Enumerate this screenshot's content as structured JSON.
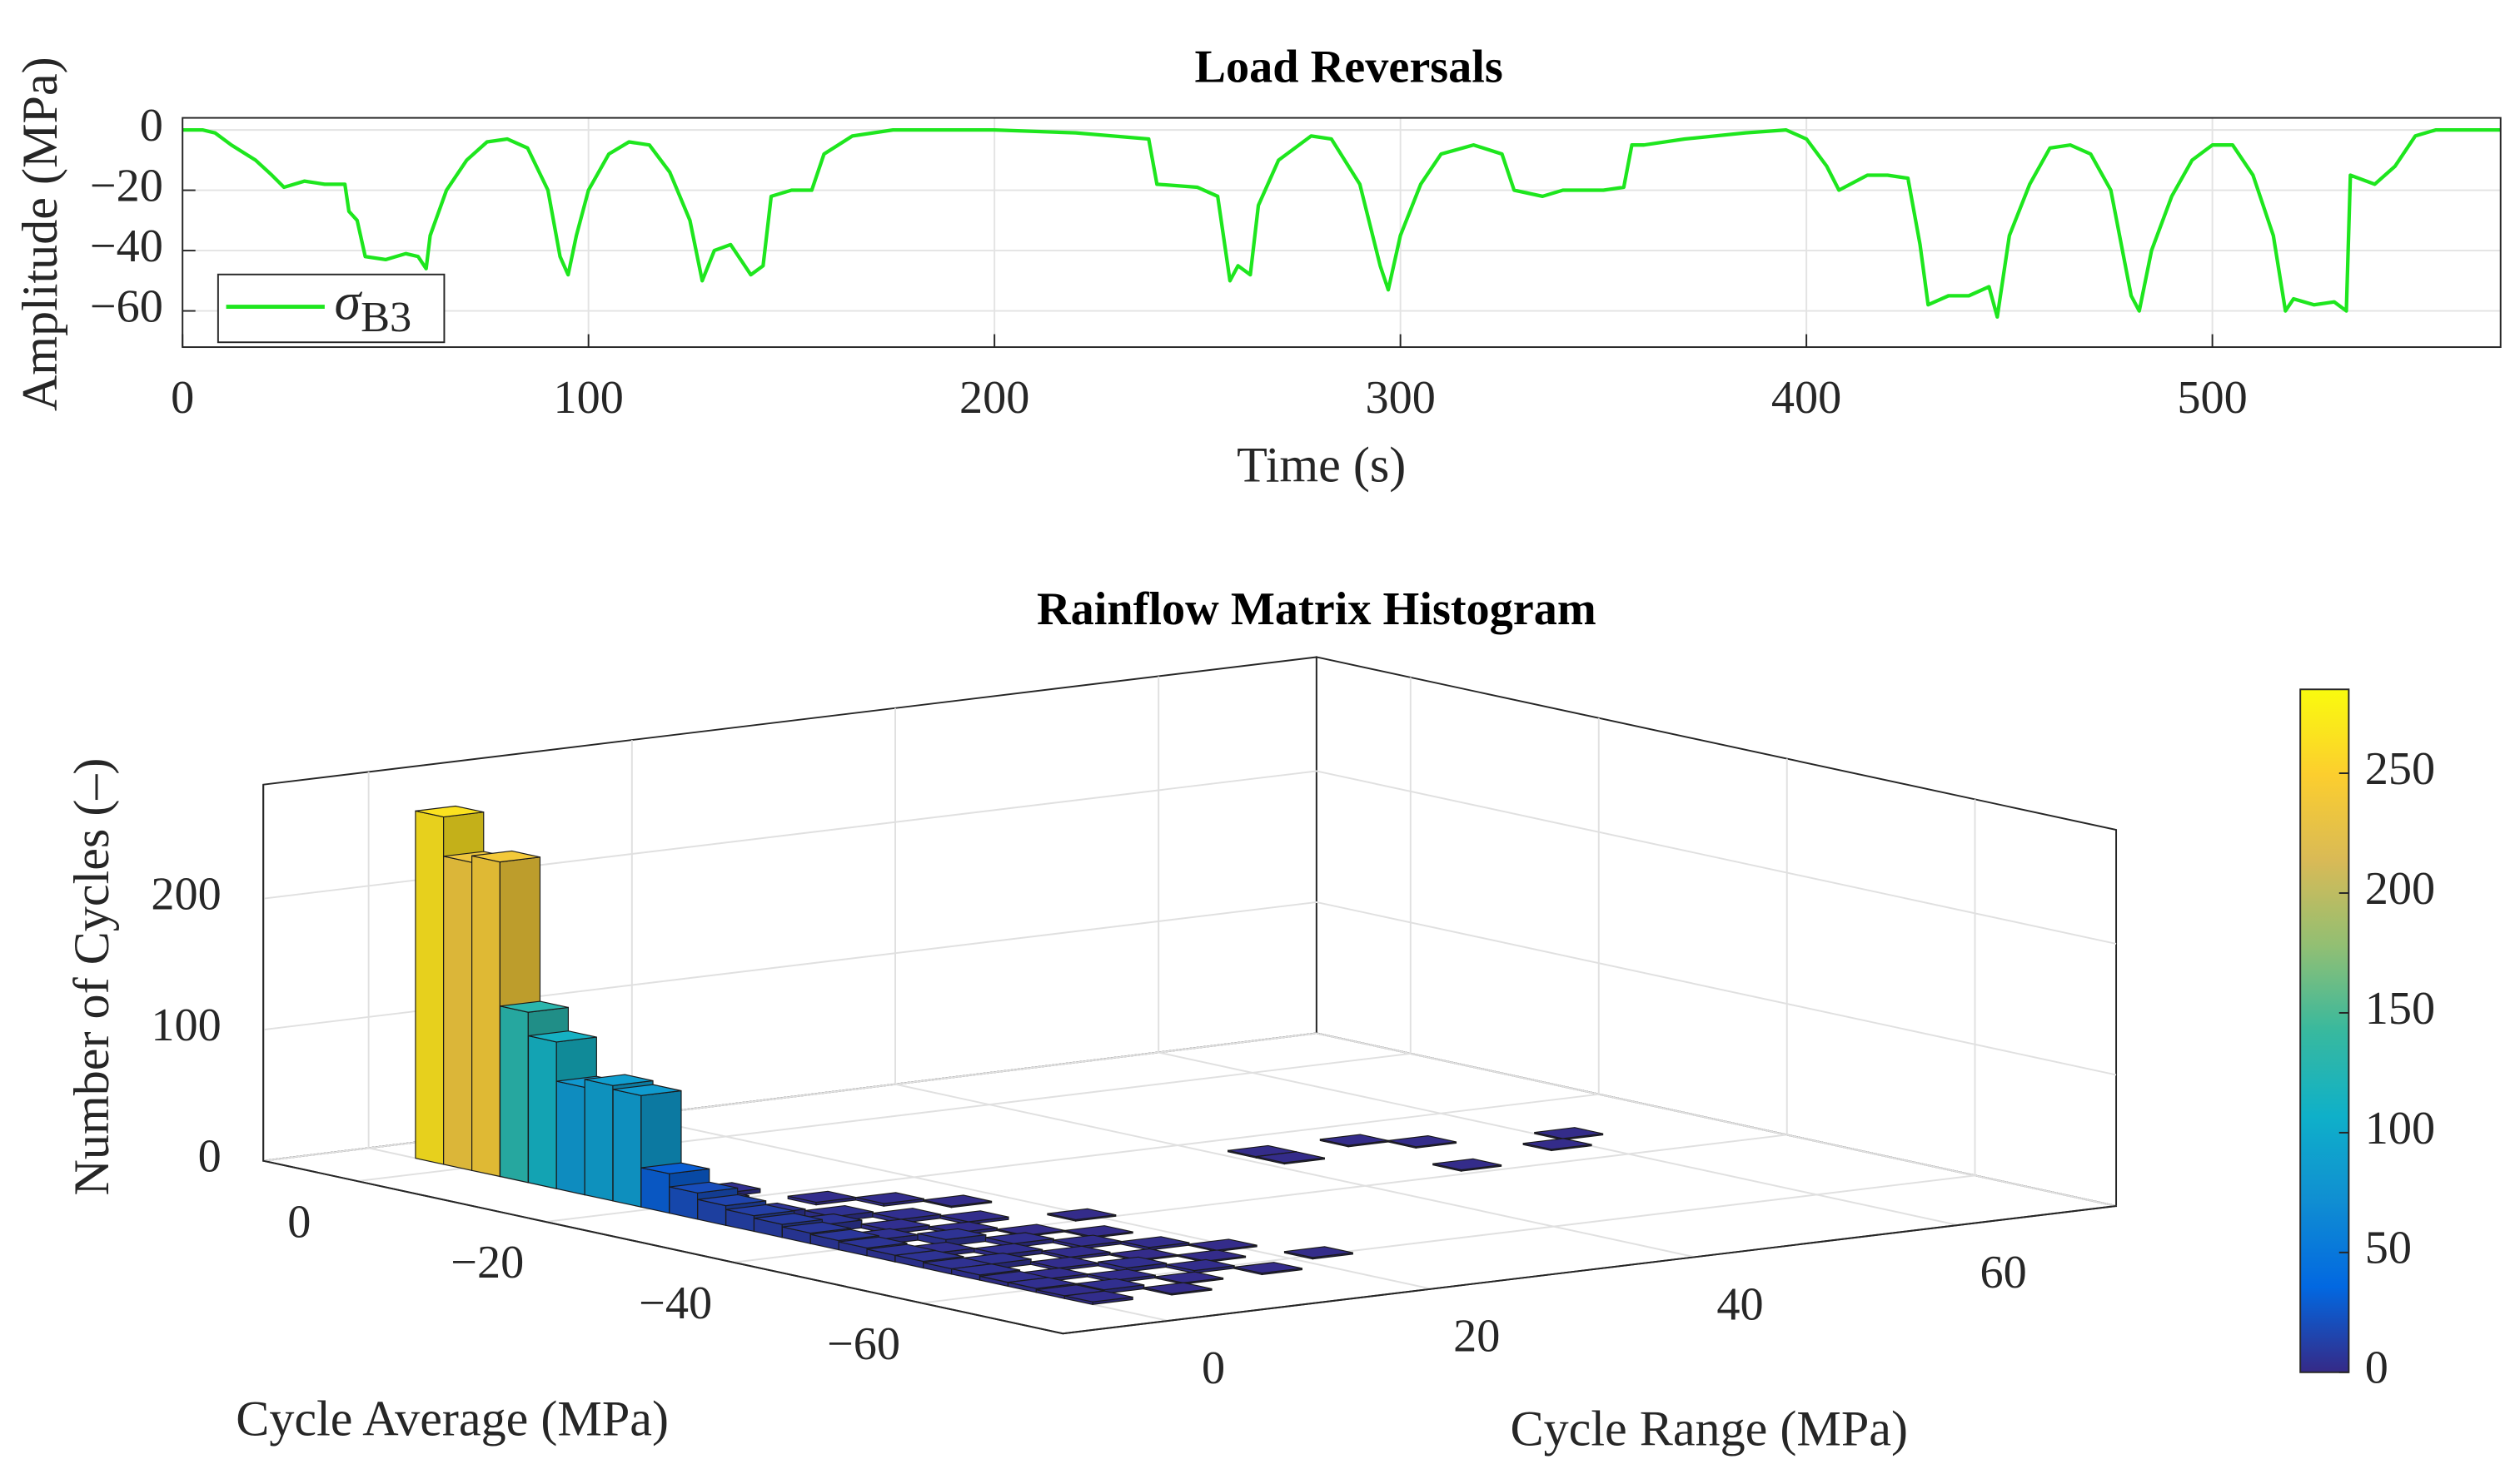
{
  "chart_data": [
    {
      "type": "line",
      "title": "Load Reversals",
      "xlabel": "Time (s)",
      "ylabel": "Amplitude (MPa)",
      "xlim": [
        0,
        571
      ],
      "ylim": [
        -72,
        4
      ],
      "xticks": [
        0,
        100,
        200,
        300,
        400,
        500
      ],
      "yticks": [
        {
          "value": -60,
          "label": "−60"
        },
        {
          "value": -40,
          "label": "−40"
        },
        {
          "value": -20,
          "label": "−20"
        },
        0
      ],
      "grid": true,
      "legend": "southwest",
      "series": [
        {
          "name": "σB3",
          "color": "#1ee61e",
          "x": [
            0,
            5,
            8,
            12,
            18,
            22,
            25,
            30,
            35,
            40,
            41,
            43,
            45,
            50,
            55,
            58,
            60,
            61,
            65,
            70,
            75,
            80,
            85,
            90,
            93,
            95,
            97,
            100,
            105,
            110,
            115,
            120,
            125,
            128,
            131,
            135,
            140,
            143,
            145,
            150,
            155,
            158,
            165,
            175,
            200,
            220,
            238,
            240,
            250,
            255,
            258,
            260,
            263,
            265,
            270,
            278,
            283,
            290,
            295,
            297,
            300,
            305,
            310,
            318,
            325,
            328,
            335,
            340,
            345,
            350,
            355,
            357,
            360,
            370,
            385,
            395,
            400,
            405,
            408,
            415,
            420,
            425,
            428,
            430,
            435,
            440,
            445,
            447,
            450,
            455,
            460,
            465,
            470,
            475,
            480,
            482,
            485,
            490,
            495,
            500,
            505,
            510,
            515,
            518,
            520,
            525,
            530,
            533,
            534,
            540,
            545,
            550,
            555,
            571
          ],
          "values": [
            0,
            0,
            -1,
            -5,
            -10,
            -15,
            -19,
            -17,
            -18,
            -18,
            -27,
            -30,
            -42,
            -43,
            -41,
            -42,
            -46,
            -35,
            -20,
            -10,
            -4,
            -3,
            -6,
            -20,
            -42,
            -48,
            -35,
            -20,
            -8,
            -4,
            -5,
            -14,
            -30,
            -50,
            -40,
            -38,
            -48,
            -45,
            -22,
            -20,
            -20,
            -8,
            -2,
            0,
            0,
            -1,
            -3,
            -18,
            -19,
            -22,
            -50,
            -45,
            -48,
            -25,
            -10,
            -2,
            -3,
            -18,
            -45,
            -53,
            -35,
            -18,
            -8,
            -5,
            -8,
            -20,
            -22,
            -20,
            -20,
            -20,
            -19,
            -5,
            -5,
            -3,
            -1,
            0,
            -3,
            -12,
            -20,
            -15,
            -15,
            -16,
            -38,
            -58,
            -55,
            -55,
            -52,
            -62,
            -35,
            -18,
            -6,
            -5,
            -8,
            -20,
            -55,
            -60,
            -40,
            -22,
            -10,
            -5,
            -5,
            -15,
            -35,
            -60,
            -56,
            -58,
            -57,
            -60,
            -15,
            -18,
            -12,
            -2,
            0,
            0
          ]
        }
      ]
    },
    {
      "type": "bar3d",
      "title": "Rainflow Matrix Histogram",
      "xlabel": "Cycle Range (MPa)",
      "ylabel": "Cycle Average (MPa)",
      "zlabel": "Number of Cycles (–)",
      "xlim": [
        -8,
        72
      ],
      "ylim": [
        -75,
        10
      ],
      "zlim": [
        0,
        287
      ],
      "xticks": [
        0,
        20,
        40,
        60
      ],
      "yticks": [
        0,
        {
          "value": -20,
          "label": "−20"
        },
        {
          "value": -40,
          "label": "−40"
        },
        {
          "value": -60,
          "label": "−60"
        }
      ],
      "zticks": [
        0,
        100,
        200
      ],
      "grid": true,
      "colormap": "parula",
      "clim": [
        0,
        285
      ],
      "cticks": [
        0,
        50,
        100,
        150,
        200,
        250
      ],
      "x": [
        1.5,
        1.5,
        1.5,
        1.5,
        1.5,
        1.5,
        1.5,
        1.5,
        1.5,
        1.5,
        1.5,
        1.5,
        1.5,
        1.5,
        1.5,
        1.5,
        1.5,
        1.5,
        1.5,
        1.5,
        1.5,
        1.5,
        1.5,
        1.5,
        4.5,
        4.5,
        4.5,
        4.5,
        4.5,
        4.5,
        4.5,
        4.5,
        7.5,
        7.5,
        7.5,
        7.5,
        7.5,
        7.5,
        7.5,
        7.5,
        10.5,
        10.5,
        10.5,
        10.5,
        10.5,
        10.5,
        10.5,
        13.5,
        13.5,
        13.5,
        13.5,
        13.5,
        13.5,
        16.5,
        16.5,
        16.5,
        16.5,
        16.5,
        19.5,
        19.5,
        22.5,
        42.5,
        42.5,
        49.5,
        52.5,
        49.5,
        58.5,
        61.5
      ],
      "y": [
        3.5,
        0.5,
        -2.5,
        -5.5,
        -8.5,
        -11.5,
        -14.5,
        -17.5,
        -20.5,
        -23.5,
        -26.5,
        -29.5,
        -32.5,
        -35.5,
        -38.5,
        -41.5,
        -44.5,
        -47.5,
        -50.5,
        -53.5,
        -56.5,
        -59.5,
        -62.5,
        -65.5,
        -20.5,
        -26.5,
        -32.5,
        -38.5,
        -44.5,
        -50.5,
        -56.5,
        -62.5,
        -17.5,
        -29.5,
        -35.5,
        -41.5,
        -47.5,
        -53.5,
        -59.5,
        -65.5,
        -23.5,
        -32.5,
        -38.5,
        -44.5,
        -50.5,
        -56.5,
        -62.5,
        -26.5,
        -35.5,
        -41.5,
        -47.5,
        -53.5,
        -59.5,
        -29.5,
        -44.5,
        -50.5,
        -56.5,
        -62.5,
        -38.5,
        -53.5,
        -59.5,
        -25.5,
        -28.5,
        -25.5,
        -28.5,
        -37.5,
        -34.5,
        -31.5
      ],
      "values": [
        265,
        235,
        240,
        130,
        112,
        82,
        88,
        85,
        30,
        20,
        15,
        12,
        10,
        8,
        7,
        6,
        5,
        5,
        4,
        4,
        3,
        3,
        2,
        2,
        6,
        5,
        6,
        4,
        3,
        4,
        2,
        3,
        3,
        4,
        3,
        5,
        3,
        2,
        2,
        1,
        2,
        3,
        2,
        3,
        2,
        3,
        1,
        2,
        2,
        1,
        2,
        1,
        2,
        1,
        1,
        2,
        1,
        1,
        1,
        1,
        1,
        1,
        1,
        1,
        1,
        1,
        1,
        1
      ]
    }
  ]
}
